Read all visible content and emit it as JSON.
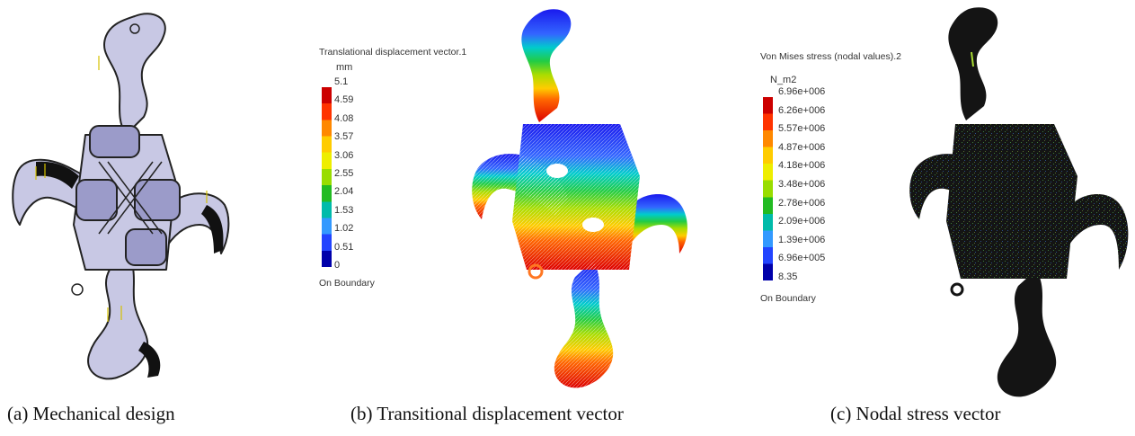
{
  "panels": {
    "a": {
      "caption": "(a) Mechanical design"
    },
    "b": {
      "caption": "(b) Transitional displacement vector",
      "legend_title": "Translational displacement vector.1",
      "unit": "mm",
      "ticks": [
        "5.1",
        "4.59",
        "4.08",
        "3.57",
        "3.06",
        "2.55",
        "2.04",
        "1.53",
        "1.02",
        "0.51",
        "0"
      ],
      "boundary": "On Boundary"
    },
    "c": {
      "caption": "(c) Nodal stress vector",
      "legend_title": "Von Mises stress (nodal values).2",
      "unit": "N_m2",
      "ticks": [
        "6.96e+006",
        "6.26e+006",
        "5.57e+006",
        "4.87e+006",
        "4.18e+006",
        "3.48e+006",
        "2.78e+006",
        "2.09e+006",
        "1.39e+006",
        "6.96e+005",
        "8.35"
      ],
      "boundary": "On Boundary"
    }
  },
  "colors": {
    "scale": [
      "#cc0000",
      "#ff3300",
      "#ff8800",
      "#ffcc00",
      "#eeee00",
      "#99dd00",
      "#22bb22",
      "#00bbaa",
      "#3399ff",
      "#2244ff",
      "#0000aa"
    ],
    "design_fill": "#c8c8e4",
    "stress_body": "#141414"
  },
  "icons": [
    "mechanical-design-illustration",
    "displacement-mesh-illustration",
    "stress-mesh-illustration"
  ]
}
